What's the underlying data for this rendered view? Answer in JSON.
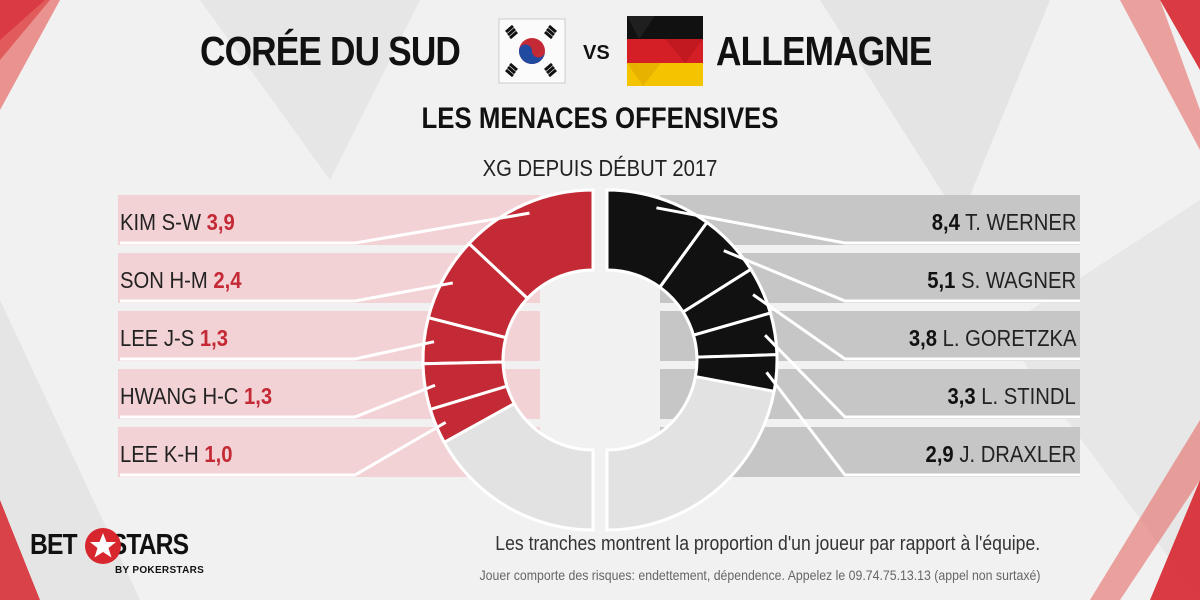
{
  "header": {
    "team_left": "CORÉE DU SUD",
    "vs": "VS",
    "team_right": "ALLEMAGNE",
    "subtitle": "LES MENACES OFFENSIVES",
    "caption": "XG DEPUIS DÉBUT 2017"
  },
  "flags": {
    "left": "south-korea-flag-icon",
    "right": "germany-flag-icon"
  },
  "colors": {
    "korea": "#c42a35",
    "germany": "#111111",
    "korea_band": "#f3d2d5",
    "germany_band": "#c6c6c6",
    "rest": "#e2e2e2"
  },
  "chart_data": {
    "type": "pie",
    "subtype": "half-donut pair",
    "series": [
      {
        "name": "CORÉE DU SUD",
        "labels": [
          "KIM S-W",
          "SON H-M",
          "LEE J-S",
          "HWANG H-C",
          "LEE K-H"
        ],
        "values": [
          3.9,
          2.4,
          1.3,
          1.3,
          1.0
        ],
        "value_labels": [
          "3,9",
          "2,4",
          "1,3",
          "1,3",
          "1,0"
        ],
        "share_of_team": [
          0.26,
          0.16,
          0.087,
          0.087,
          0.067
        ]
      },
      {
        "name": "ALLEMAGNE",
        "labels": [
          "T. WERNER",
          "S. WAGNER",
          "L. GORETZKA",
          "L. STINDL",
          "J. DRAXLER"
        ],
        "values": [
          8.4,
          5.1,
          3.8,
          3.3,
          2.9
        ],
        "value_labels": [
          "8,4",
          "5,1",
          "3,8",
          "3,3",
          "2,9"
        ],
        "share_of_team": [
          0.2,
          0.121,
          0.09,
          0.079,
          0.069
        ]
      }
    ]
  },
  "footer": {
    "note": "Les tranches montrent la proportion d'un joueur par rapport à l'équipe.",
    "disclaimer": "Jouer comporte des risques: endettement, dépendence. Appelez le 09.74.75.13.13 (appel non surtaxé)",
    "logo_left": "BET",
    "logo_right": "STARS",
    "logo_sub": "BY POKERSTARS"
  }
}
